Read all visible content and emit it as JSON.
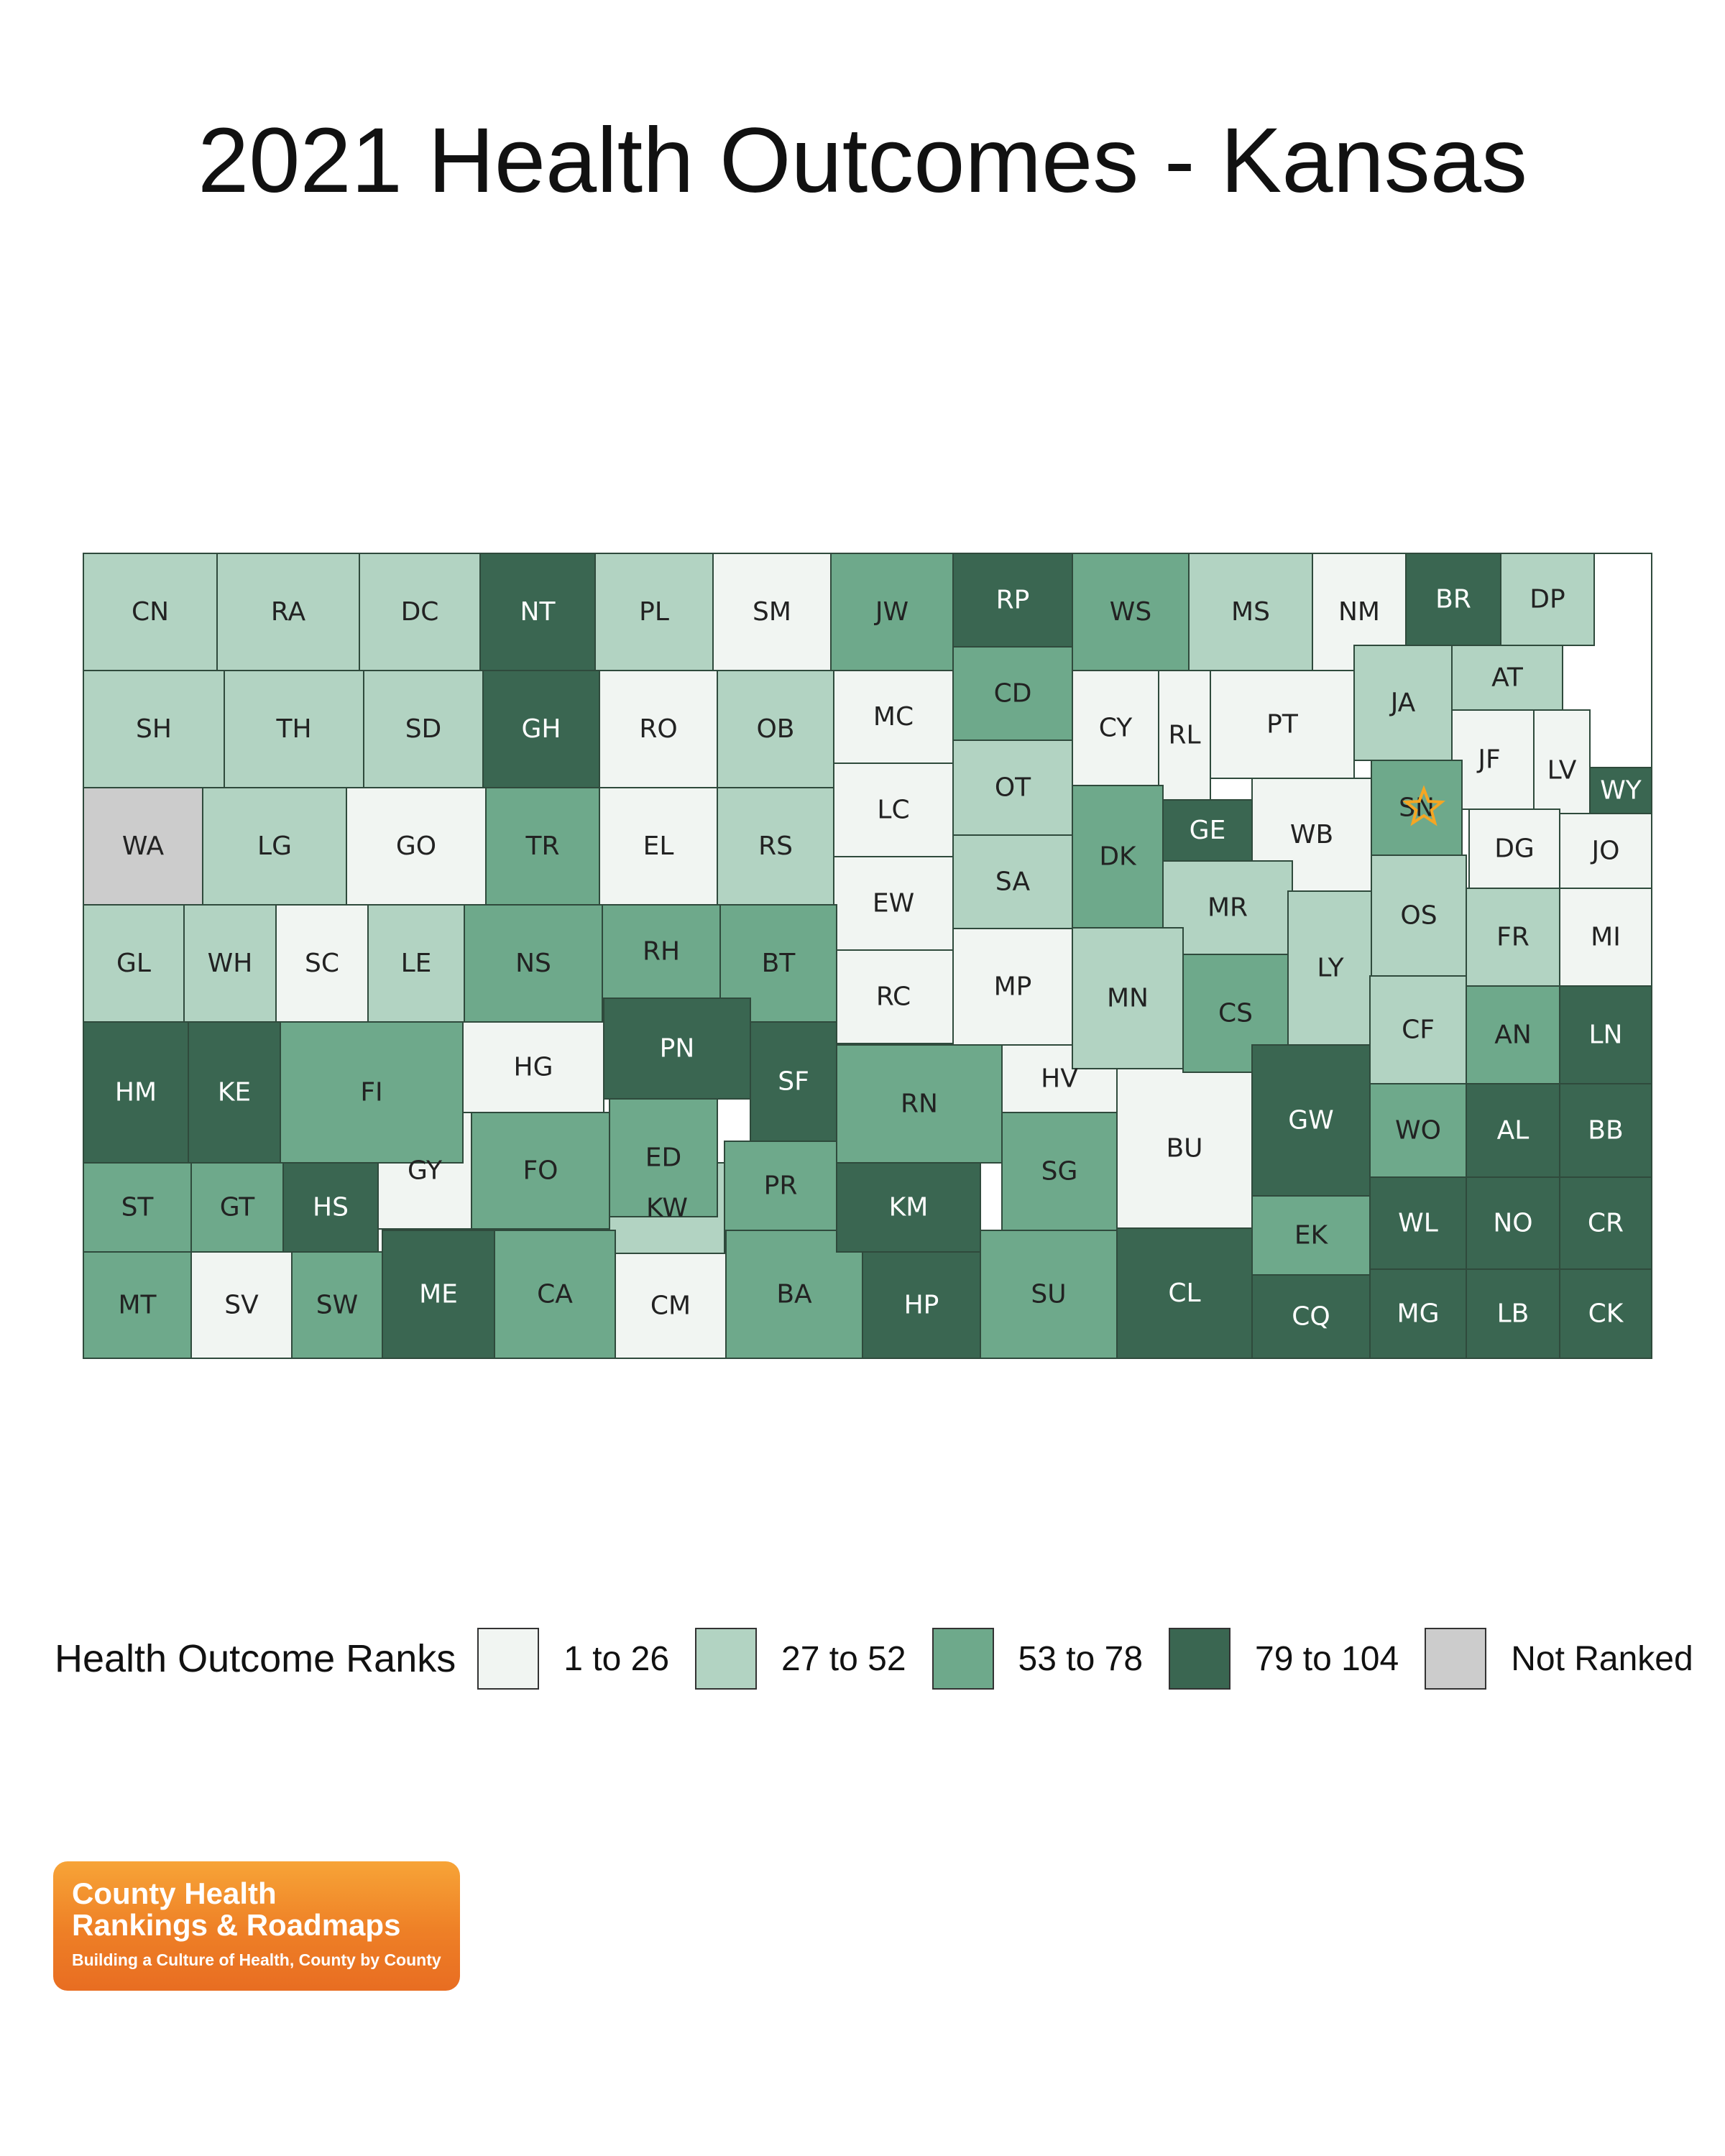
{
  "title": "2021 Health Outcomes - Kansas",
  "legend": {
    "title": "Health Outcome Ranks",
    "items": [
      {
        "label": "1 to 26",
        "color": "#f1f5f2"
      },
      {
        "label": "27 to 52",
        "color": "#b2d3c2"
      },
      {
        "label": "53 to 78",
        "color": "#6ea98b"
      },
      {
        "label": "79 to 104",
        "color": "#3a6651"
      },
      {
        "label": "Not Ranked",
        "color": "#cccccc"
      }
    ]
  },
  "map_data": {
    "counties": [
      {
        "abbr": "CN",
        "rank_group": 2
      },
      {
        "abbr": "RA",
        "rank_group": 2
      },
      {
        "abbr": "DC",
        "rank_group": 2
      },
      {
        "abbr": "NT",
        "rank_group": 4
      },
      {
        "abbr": "PL",
        "rank_group": 2
      },
      {
        "abbr": "SM",
        "rank_group": 1
      },
      {
        "abbr": "JW",
        "rank_group": 3
      },
      {
        "abbr": "RP",
        "rank_group": 4
      },
      {
        "abbr": "WS",
        "rank_group": 3
      },
      {
        "abbr": "MS",
        "rank_group": 2
      },
      {
        "abbr": "NM",
        "rank_group": 1
      },
      {
        "abbr": "BR",
        "rank_group": 4
      },
      {
        "abbr": "DP",
        "rank_group": 2
      },
      {
        "abbr": "SH",
        "rank_group": 2
      },
      {
        "abbr": "TH",
        "rank_group": 2
      },
      {
        "abbr": "SD",
        "rank_group": 2
      },
      {
        "abbr": "GH",
        "rank_group": 4
      },
      {
        "abbr": "RO",
        "rank_group": 1
      },
      {
        "abbr": "OB",
        "rank_group": 2
      },
      {
        "abbr": "MC",
        "rank_group": 1
      },
      {
        "abbr": "CD",
        "rank_group": 3
      },
      {
        "abbr": "CY",
        "rank_group": 1
      },
      {
        "abbr": "RL",
        "rank_group": 1
      },
      {
        "abbr": "PT",
        "rank_group": 1
      },
      {
        "abbr": "JA",
        "rank_group": 2
      },
      {
        "abbr": "AT",
        "rank_group": 2
      },
      {
        "abbr": "JF",
        "rank_group": 1
      },
      {
        "abbr": "LV",
        "rank_group": 1
      },
      {
        "abbr": "WA",
        "rank_group": 0
      },
      {
        "abbr": "LG",
        "rank_group": 2
      },
      {
        "abbr": "GO",
        "rank_group": 1
      },
      {
        "abbr": "TR",
        "rank_group": 3
      },
      {
        "abbr": "EL",
        "rank_group": 1
      },
      {
        "abbr": "RS",
        "rank_group": 2
      },
      {
        "abbr": "LC",
        "rank_group": 1
      },
      {
        "abbr": "OT",
        "rank_group": 2
      },
      {
        "abbr": "SA",
        "rank_group": 2
      },
      {
        "abbr": "DK",
        "rank_group": 3
      },
      {
        "abbr": "GE",
        "rank_group": 4
      },
      {
        "abbr": "WB",
        "rank_group": 1
      },
      {
        "abbr": "SN",
        "rank_group": 3
      },
      {
        "abbr": "WY",
        "rank_group": 4
      },
      {
        "abbr": "DG",
        "rank_group": 1
      },
      {
        "abbr": "JO",
        "rank_group": 1
      },
      {
        "abbr": "GL",
        "rank_group": 2
      },
      {
        "abbr": "WH",
        "rank_group": 2
      },
      {
        "abbr": "SC",
        "rank_group": 1
      },
      {
        "abbr": "LE",
        "rank_group": 2
      },
      {
        "abbr": "NS",
        "rank_group": 3
      },
      {
        "abbr": "RH",
        "rank_group": 3
      },
      {
        "abbr": "BT",
        "rank_group": 3
      },
      {
        "abbr": "EW",
        "rank_group": 1
      },
      {
        "abbr": "RC",
        "rank_group": 1
      },
      {
        "abbr": "MP",
        "rank_group": 1
      },
      {
        "abbr": "MR",
        "rank_group": 2
      },
      {
        "abbr": "MN",
        "rank_group": 2
      },
      {
        "abbr": "CS",
        "rank_group": 3
      },
      {
        "abbr": "LY",
        "rank_group": 2
      },
      {
        "abbr": "OS",
        "rank_group": 2
      },
      {
        "abbr": "FR",
        "rank_group": 2
      },
      {
        "abbr": "MI",
        "rank_group": 1
      },
      {
        "abbr": "HM",
        "rank_group": 4
      },
      {
        "abbr": "KE",
        "rank_group": 4
      },
      {
        "abbr": "FI",
        "rank_group": 3
      },
      {
        "abbr": "HG",
        "rank_group": 1
      },
      {
        "abbr": "PN",
        "rank_group": 4
      },
      {
        "abbr": "SF",
        "rank_group": 4
      },
      {
        "abbr": "RN",
        "rank_group": 3
      },
      {
        "abbr": "HV",
        "rank_group": 1
      },
      {
        "abbr": "BU",
        "rank_group": 1
      },
      {
        "abbr": "GW",
        "rank_group": 4
      },
      {
        "abbr": "CF",
        "rank_group": 2
      },
      {
        "abbr": "AN",
        "rank_group": 3
      },
      {
        "abbr": "LN",
        "rank_group": 4
      },
      {
        "abbr": "GY",
        "rank_group": 1
      },
      {
        "abbr": "ED",
        "rank_group": 3
      },
      {
        "abbr": "FO",
        "rank_group": 3
      },
      {
        "abbr": "SG",
        "rank_group": 3
      },
      {
        "abbr": "WO",
        "rank_group": 3
      },
      {
        "abbr": "AL",
        "rank_group": 4
      },
      {
        "abbr": "BB",
        "rank_group": 4
      },
      {
        "abbr": "ST",
        "rank_group": 3
      },
      {
        "abbr": "GT",
        "rank_group": 3
      },
      {
        "abbr": "HS",
        "rank_group": 4
      },
      {
        "abbr": "KW",
        "rank_group": 2
      },
      {
        "abbr": "PR",
        "rank_group": 3
      },
      {
        "abbr": "KM",
        "rank_group": 4
      },
      {
        "abbr": "EK",
        "rank_group": 3
      },
      {
        "abbr": "WL",
        "rank_group": 4
      },
      {
        "abbr": "NO",
        "rank_group": 4
      },
      {
        "abbr": "CR",
        "rank_group": 4
      },
      {
        "abbr": "MT",
        "rank_group": 3
      },
      {
        "abbr": "SV",
        "rank_group": 1
      },
      {
        "abbr": "SW",
        "rank_group": 3
      },
      {
        "abbr": "ME",
        "rank_group": 4
      },
      {
        "abbr": "CA",
        "rank_group": 3
      },
      {
        "abbr": "CM",
        "rank_group": 1
      },
      {
        "abbr": "BA",
        "rank_group": 3
      },
      {
        "abbr": "HP",
        "rank_group": 4
      },
      {
        "abbr": "SU",
        "rank_group": 3
      },
      {
        "abbr": "CL",
        "rank_group": 4
      },
      {
        "abbr": "CQ",
        "rank_group": 4
      },
      {
        "abbr": "MG",
        "rank_group": 4
      },
      {
        "abbr": "LB",
        "rank_group": 4
      },
      {
        "abbr": "CK",
        "rank_group": 4
      }
    ],
    "capital_county": "SN",
    "capital_marker_color": "#f5a623"
  },
  "logo": {
    "line1": "County Health",
    "line2": "Rankings & Roadmaps",
    "tagline": "Building a Culture of Health, County by County"
  }
}
